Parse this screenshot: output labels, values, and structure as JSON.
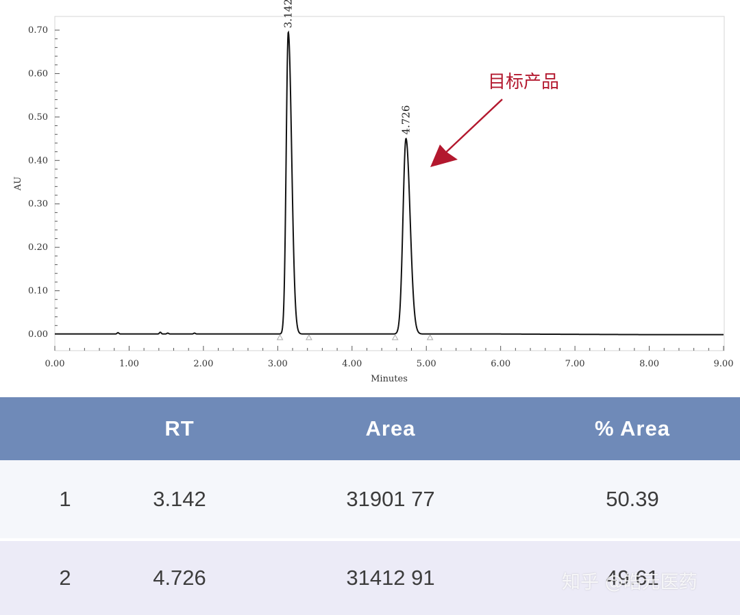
{
  "chart_data": {
    "type": "line",
    "xlabel": "Minutes",
    "ylabel": "AU",
    "xlim": [
      0,
      9
    ],
    "ylim": [
      -0.03,
      0.73
    ],
    "x_ticks": [
      "0.00",
      "1.00",
      "2.00",
      "3.00",
      "4.00",
      "5.00",
      "6.00",
      "7.00",
      "8.00",
      "9.00"
    ],
    "y_ticks": [
      "0.00",
      "0.10",
      "0.20",
      "0.30",
      "0.40",
      "0.50",
      "0.60",
      "0.70"
    ],
    "peaks": [
      {
        "rt": 3.142,
        "label": "3.142",
        "height": 0.695,
        "start": 3.03,
        "end": 3.42
      },
      {
        "rt": 4.726,
        "label": "4.726",
        "height": 0.45,
        "start": 4.58,
        "end": 5.05
      }
    ],
    "baseline_noise": [
      {
        "x": 0.85,
        "y": 0.003
      },
      {
        "x": 1.42,
        "y": 0.004
      },
      {
        "x": 1.52,
        "y": 0.002
      },
      {
        "x": 1.88,
        "y": 0.002
      }
    ],
    "annotation": {
      "text": "目标产品",
      "color": "#b3182e",
      "points_to": 4.726
    }
  },
  "table": {
    "headers": [
      "",
      "RT",
      "Area",
      "% Area"
    ],
    "rows": [
      [
        "1",
        "3.142",
        "31901 77",
        "50.39"
      ],
      [
        "2",
        "4.726",
        "31412 91",
        "49.61"
      ]
    ]
  },
  "watermark": "知乎 @皓元医药"
}
